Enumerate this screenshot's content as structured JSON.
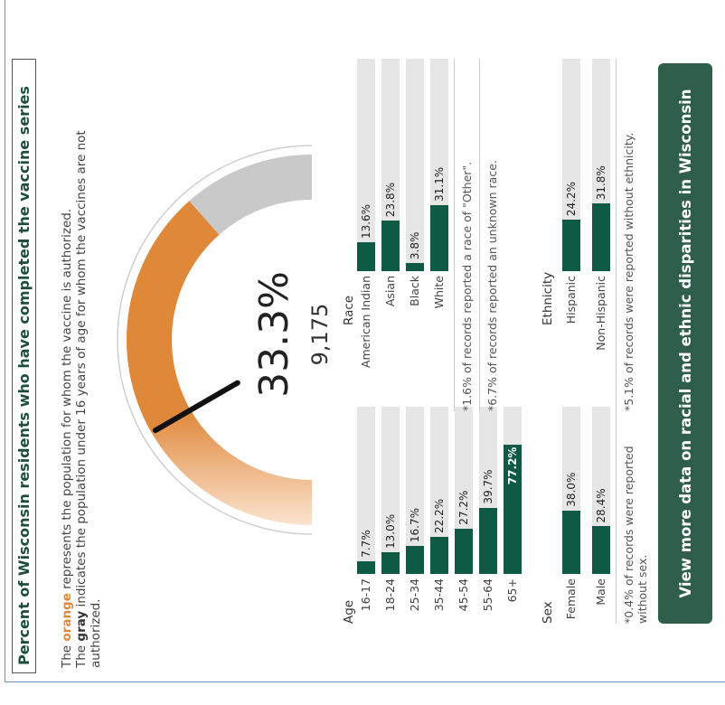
{
  "header": {
    "title": "Percent of Wisconsin residents who have completed the vaccine series",
    "lines": [
      {
        "lead": "The",
        "key": "orange",
        "rest": "represents the population for whom the vaccine is authorized."
      },
      {
        "lead": "The",
        "key": "gray",
        "rest": "indicates the population under 16 years of age for whom the vaccines are not authorized."
      }
    ]
  },
  "gauge": {
    "value": 33.3,
    "value_label": "33.3%",
    "count": "9,175",
    "authorized": 77,
    "range": [
      0,
      100
    ]
  },
  "colors": {
    "orange": "#e0883a",
    "orange_light": "#fbe3cf",
    "gray": "#c9c9c9",
    "bar": "#0e5a45",
    "track": "#e6e6e6"
  },
  "panels": [
    {
      "title": "Age",
      "categories": [
        "16-17",
        "18-24",
        "25-34",
        "35-44",
        "45-54",
        "55-64",
        "65+"
      ],
      "values": [
        7.7,
        13.0,
        16.7,
        22.2,
        27.2,
        39.7,
        77.2
      ],
      "value_labels": [
        "7.7%",
        "13.0%",
        "16.7%",
        "22.2%",
        "27.2%",
        "39.7%",
        "77.2%"
      ],
      "xlim": [
        0,
        100
      ],
      "notes": []
    },
    {
      "title": "Race",
      "categories": [
        "American Indian",
        "Asian",
        "Black",
        "White"
      ],
      "values": [
        13.6,
        23.8,
        3.8,
        31.1
      ],
      "value_labels": [
        "13.6%",
        "23.8%",
        "3.8%",
        "31.1%"
      ],
      "xlim": [
        0,
        100
      ],
      "notes": [
        "*1.6% of records reported a race of \"Other\".",
        "*6.7% of records reported an unknown race."
      ]
    },
    {
      "title": "Sex",
      "categories": [
        "Female",
        "Male"
      ],
      "values": [
        38.0,
        28.4
      ],
      "value_labels": [
        "38.0%",
        "28.4%"
      ],
      "xlim": [
        0,
        100
      ],
      "notes": [
        "*0.4% of records were reported without sex."
      ]
    },
    {
      "title": "Ethnicity",
      "categories": [
        "Hispanic",
        "Non-Hispanic"
      ],
      "values": [
        24.2,
        31.8
      ],
      "value_labels": [
        "24.2%",
        "31.8%"
      ],
      "xlim": [
        0,
        100
      ],
      "notes": [
        "*5.1% of records were reported without ethnicity."
      ]
    }
  ],
  "button": "View more data on racial and ethnic disparities in Wisconsin"
}
